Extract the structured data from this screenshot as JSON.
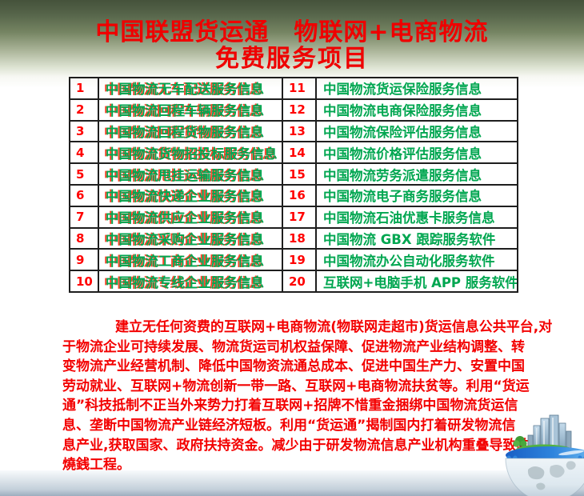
{
  "page": {
    "title_line1": "中国联盟货运通　物联网+电商物流",
    "title_line2": "免费服务项目"
  },
  "table": {
    "rows": [
      {
        "num_left": "1",
        "service_left": "中国物流无车配送服务信息",
        "num_right": "11",
        "service_right": "中国物流货运保险服务信息"
      },
      {
        "num_left": "2",
        "service_left": "中国物流回程车辆服务信息",
        "num_right": "12",
        "service_right": "中国物流电商保险服务信息"
      },
      {
        "num_left": "3",
        "service_left": "中国物流回程货物服务信息",
        "num_right": "13",
        "service_right": "中国物流保险评估服务信息"
      },
      {
        "num_left": "4",
        "service_left": "中国物流货物招投标服务信息",
        "num_right": "14",
        "service_right": "中国物流价格评估服务信息"
      },
      {
        "num_left": "5",
        "service_left": "中国物流甩挂运输服务信息",
        "num_right": "15",
        "service_right": "中国物流劳务派遣服务信息"
      },
      {
        "num_left": "6",
        "service_left": "中国物流快递企业服务信息",
        "num_right": "16",
        "service_right": "中国物流电子商务服务信息"
      },
      {
        "num_left": "7",
        "service_left": "中国物流供应企业服务信息",
        "num_right": "17",
        "service_right": "中国物流石油优惠卡服务信息"
      },
      {
        "num_left": "8",
        "service_left": "中国物流采购企业服务信息",
        "num_right": "18",
        "service_right": "中国物流 GBX 跟踪服务软件"
      },
      {
        "num_left": "9",
        "service_left": "中国物流工商企业服务信息",
        "num_right": "19",
        "service_right": "中国物流办公自动化服务软件"
      },
      {
        "num_left": "10",
        "service_left": "中国物流专线企业服务信息",
        "num_right": "20",
        "service_right": "互联网+电脑手机 APP 服务软件"
      }
    ]
  },
  "paragraph": {
    "lines": [
      "建立无任何资费的互联网+电商物流(物联网走超市)货运信息公共平台,对",
      "于物流企业可持续发展、物流货运司机权益保障、促进物流产业结构调整、转",
      "变物流产业经营机制、降低中国物资流通总成本、促进中国生产力、安置中国",
      "劳动就业、互联网+物流创新一带一路、互联网+电商物流扶贫等。利用“货运",
      "通”科技抵制不正当外来势力打着互联网+招牌不惜重金捆绑中国物流货运信",
      "息、垄断中国物流产业链经济短板。利用“货运通”揭制国内打着研发物流信",
      "息产业,获取国家、政府扶持资金。减少由于研发物流信息产业机构重叠导致的",
      "燒銭工程。"
    ]
  },
  "decor": {
    "globe_image": "globe-with-skyscraper-city"
  },
  "colors": {
    "title_red": "#ef0000",
    "number_red": "#ff0000",
    "service_green": "#00a650",
    "service_shadow_red": "#ff2000",
    "paragraph_red": "#f30000",
    "table_border": "#1e1e1e",
    "header_gradient_top": "#45523b",
    "bottom_band": "#c3cfda"
  }
}
